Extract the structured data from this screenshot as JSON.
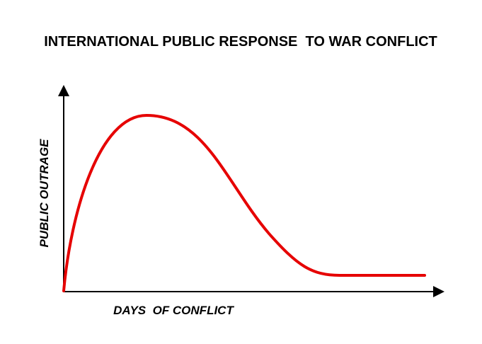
{
  "title": "INTERNATIONAL PUBLIC RESPONSE  TO WAR CONFLICT",
  "y_axis_label": "PUBLIC OUTRAGE",
  "x_axis_label": "DAYS  OF CONFLICT"
}
